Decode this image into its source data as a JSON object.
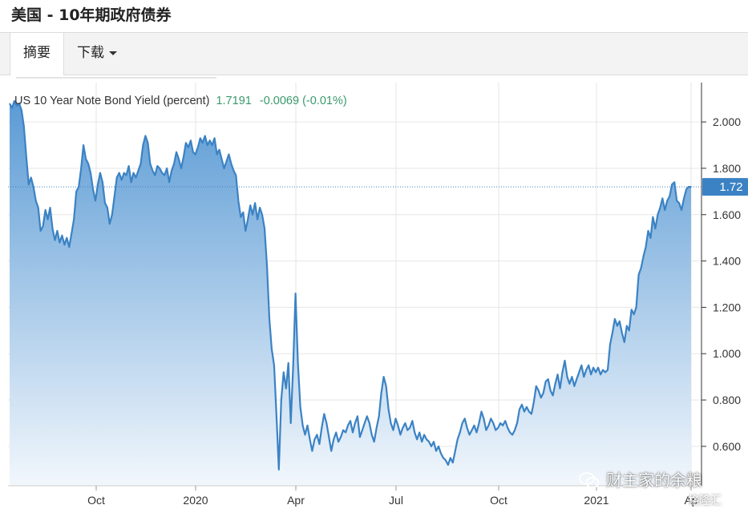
{
  "header": {
    "title": "美国 - 10年期政府债券"
  },
  "tabs": [
    {
      "label": "摘要"
    },
    {
      "label": "下载"
    }
  ],
  "watermark": {
    "text": "财主家的余粮",
    "secondary": "格隆汇"
  },
  "chart_data": {
    "type": "area",
    "title": "US 10 Year Note Bond Yield (percent)",
    "last_value": "1.7191",
    "change": "-0.0069 (-0.01%)",
    "current_label": "1.72",
    "current_value": 1.72,
    "ylim": [
      0.43,
      2.17
    ],
    "y_ticks": [
      "0.600",
      "0.800",
      "1.000",
      "1.200",
      "1.400",
      "1.600",
      "1.800",
      "2.000"
    ],
    "x_ticks": [
      "Oct",
      "2020",
      "Apr",
      "Jul",
      "Oct",
      "2021",
      "Ap"
    ],
    "grid": true,
    "colors": {
      "line": "#3b82c4",
      "fill_top": "#5b9bd5",
      "fill_bottom": "#f2f7fc",
      "value_badge": "#3b82c4"
    },
    "series": [
      {
        "values": [
          2.08,
          2.06,
          2.09,
          2.07,
          2.08,
          2.05,
          1.98,
          1.85,
          1.73,
          1.76,
          1.72,
          1.66,
          1.63,
          1.53,
          1.55,
          1.62,
          1.58,
          1.63,
          1.54,
          1.49,
          1.53,
          1.48,
          1.51,
          1.47,
          1.5,
          1.46,
          1.52,
          1.58,
          1.7,
          1.72,
          1.8,
          1.9,
          1.84,
          1.82,
          1.78,
          1.71,
          1.66,
          1.73,
          1.78,
          1.74,
          1.65,
          1.63,
          1.56,
          1.6,
          1.68,
          1.76,
          1.78,
          1.75,
          1.78,
          1.77,
          1.81,
          1.74,
          1.78,
          1.76,
          1.79,
          1.82,
          1.9,
          1.94,
          1.91,
          1.82,
          1.79,
          1.77,
          1.81,
          1.8,
          1.78,
          1.77,
          1.8,
          1.74,
          1.79,
          1.82,
          1.87,
          1.84,
          1.8,
          1.85,
          1.91,
          1.89,
          1.92,
          1.87,
          1.86,
          1.89,
          1.93,
          1.91,
          1.94,
          1.9,
          1.92,
          1.9,
          1.93,
          1.86,
          1.88,
          1.84,
          1.8,
          1.83,
          1.86,
          1.82,
          1.79,
          1.77,
          1.66,
          1.59,
          1.61,
          1.53,
          1.58,
          1.64,
          1.6,
          1.65,
          1.58,
          1.63,
          1.6,
          1.54,
          1.38,
          1.15,
          1.02,
          0.95,
          0.73,
          0.5,
          0.8,
          0.92,
          0.85,
          0.96,
          0.7,
          0.95,
          1.26,
          0.96,
          0.77,
          0.69,
          0.65,
          0.69,
          0.63,
          0.58,
          0.63,
          0.65,
          0.61,
          0.68,
          0.74,
          0.7,
          0.64,
          0.58,
          0.63,
          0.66,
          0.62,
          0.64,
          0.67,
          0.66,
          0.69,
          0.71,
          0.66,
          0.7,
          0.73,
          0.64,
          0.67,
          0.7,
          0.73,
          0.7,
          0.65,
          0.62,
          0.68,
          0.73,
          0.83,
          0.9,
          0.86,
          0.76,
          0.7,
          0.67,
          0.72,
          0.69,
          0.65,
          0.68,
          0.7,
          0.67,
          0.68,
          0.71,
          0.66,
          0.63,
          0.66,
          0.62,
          0.65,
          0.63,
          0.62,
          0.6,
          0.62,
          0.58,
          0.6,
          0.57,
          0.55,
          0.54,
          0.52,
          0.55,
          0.53,
          0.58,
          0.63,
          0.66,
          0.7,
          0.72,
          0.68,
          0.65,
          0.67,
          0.69,
          0.66,
          0.7,
          0.75,
          0.72,
          0.67,
          0.69,
          0.72,
          0.7,
          0.67,
          0.68,
          0.7,
          0.69,
          0.71,
          0.68,
          0.66,
          0.65,
          0.67,
          0.7,
          0.76,
          0.78,
          0.75,
          0.77,
          0.75,
          0.74,
          0.79,
          0.86,
          0.84,
          0.81,
          0.83,
          0.88,
          0.89,
          0.84,
          0.82,
          0.87,
          0.91,
          0.85,
          0.92,
          0.97,
          0.9,
          0.87,
          0.9,
          0.86,
          0.89,
          0.92,
          0.95,
          0.9,
          0.93,
          0.95,
          0.91,
          0.94,
          0.92,
          0.94,
          0.91,
          0.93,
          0.92,
          0.93,
          1.04,
          1.09,
          1.15,
          1.12,
          1.14,
          1.09,
          1.05,
          1.12,
          1.1,
          1.19,
          1.17,
          1.2,
          1.34,
          1.37,
          1.42,
          1.46,
          1.53,
          1.5,
          1.59,
          1.54,
          1.6,
          1.63,
          1.67,
          1.62,
          1.66,
          1.68,
          1.73,
          1.74,
          1.66,
          1.65,
          1.62,
          1.67,
          1.71,
          1.72,
          1.72
        ]
      }
    ]
  }
}
